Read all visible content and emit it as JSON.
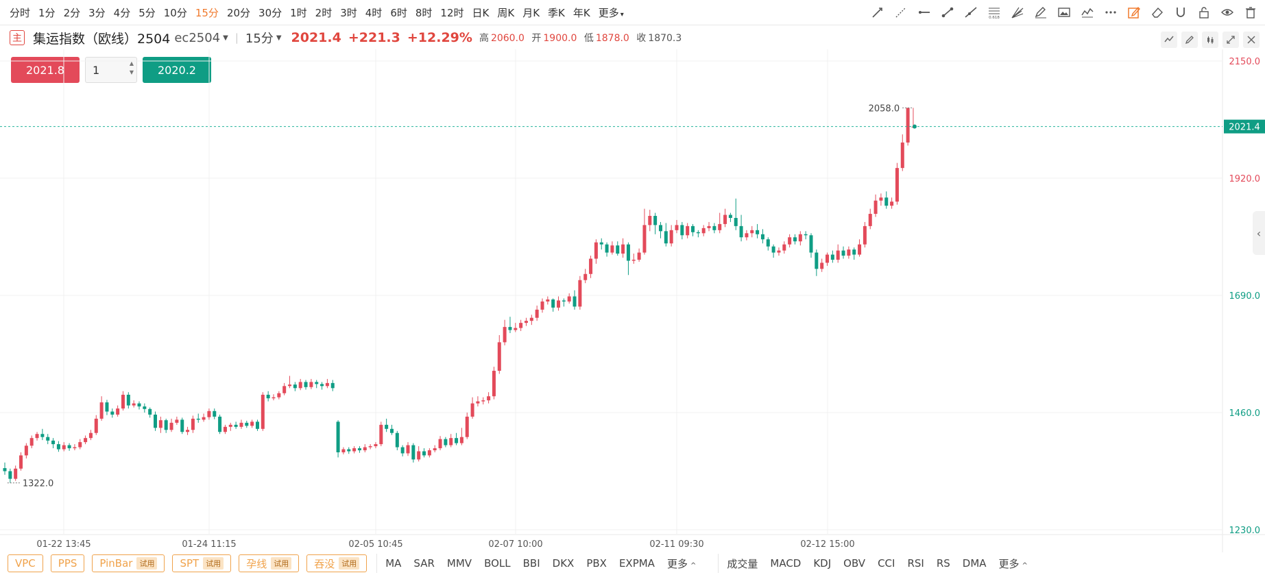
{
  "periods": {
    "items": [
      "分时",
      "1分",
      "2分",
      "3分",
      "4分",
      "5分",
      "10分",
      "15分",
      "20分",
      "30分",
      "1时",
      "2时",
      "3时",
      "4时",
      "6时",
      "8时",
      "12时",
      "日K",
      "周K",
      "月K",
      "季K",
      "年K",
      "更多"
    ],
    "active": "15分"
  },
  "drawing_tools": [
    "trend-line-icon",
    "ray-icon",
    "horizontal-line-icon",
    "segment-icon",
    "extended-line-icon",
    "fibonacci-icon",
    "gann-fan-icon",
    "brush-icon",
    "image-icon",
    "wave-icon",
    "more-icon",
    "edit-mode-icon",
    "eraser-icon",
    "magnet-icon",
    "lock-icon",
    "eye-icon",
    "trash-icon"
  ],
  "fib_label": "0.618",
  "instrument": {
    "badge": "主",
    "name": "集运指数（欧线）2504",
    "code": "ec2504",
    "interval": "15分",
    "last": "2021.4",
    "change": "+221.3",
    "change_pct": "+12.29%",
    "high_label": "高",
    "high": "2060.0",
    "open_label": "开",
    "open": "1900.0",
    "low_label": "低",
    "low": "1878.0",
    "close_label": "收",
    "close": "1870.3"
  },
  "trade": {
    "buy_price": "2021.8",
    "quantity": "1",
    "sell_price": "2020.2"
  },
  "colors": {
    "up": "#e34a5a",
    "down": "#0f9d84",
    "active_period": "#f07a2d",
    "tag": "#f0a24a"
  },
  "bottom": {
    "tags": [
      {
        "label": "VPC",
        "trial": ""
      },
      {
        "label": "PPS",
        "trial": ""
      },
      {
        "label": "PinBar",
        "trial": "试用"
      },
      {
        "label": "SPT",
        "trial": "试用"
      },
      {
        "label": "孕线",
        "trial": "试用"
      },
      {
        "label": "吞没",
        "trial": "试用"
      }
    ],
    "main_indicators": [
      "MA",
      "SAR",
      "MMV",
      "BOLL",
      "BBI",
      "DKX",
      "PBX",
      "EXPMA"
    ],
    "main_more": "更多",
    "sub_indicators": [
      "成交量",
      "MACD",
      "KDJ",
      "OBV",
      "CCI",
      "RSI",
      "RS",
      "DMA"
    ],
    "sub_more": "更多"
  },
  "chart_data": {
    "type": "candlestick",
    "y_ticks": [
      "2150.0",
      "1920.0",
      "1690.0",
      "1460.0",
      "1230.0"
    ],
    "ylim": [
      1230,
      2150
    ],
    "x_ticks": [
      "01-22 13:45",
      "01-24 11:15",
      "02-05 10:45",
      "02-07 10:00",
      "02-11 09:30",
      "02-12 15:00"
    ],
    "last_price_label": "2021.4",
    "max_label": "2058.0",
    "min_label": "1322.0",
    "candles": [
      [
        1351,
        1345,
        1362,
        1338
      ],
      [
        1345,
        1330,
        1350,
        1322
      ],
      [
        1330,
        1350,
        1356,
        1326
      ],
      [
        1350,
        1376,
        1382,
        1346
      ],
      [
        1376,
        1395,
        1400,
        1370
      ],
      [
        1395,
        1410,
        1415,
        1390
      ],
      [
        1410,
        1418,
        1422,
        1405
      ],
      [
        1418,
        1412,
        1428,
        1406
      ],
      [
        1412,
        1405,
        1418,
        1398
      ],
      [
        1405,
        1398,
        1410,
        1390
      ],
      [
        1398,
        1388,
        1404,
        1383
      ],
      [
        1388,
        1396,
        1402,
        1384
      ],
      [
        1396,
        1390,
        1400,
        1385
      ],
      [
        1390,
        1392,
        1398,
        1386
      ],
      [
        1392,
        1402,
        1408,
        1388
      ],
      [
        1402,
        1410,
        1415,
        1398
      ],
      [
        1410,
        1420,
        1426,
        1406
      ],
      [
        1420,
        1448,
        1455,
        1416
      ],
      [
        1448,
        1480,
        1492,
        1444
      ],
      [
        1480,
        1462,
        1485,
        1455
      ],
      [
        1462,
        1456,
        1468,
        1450
      ],
      [
        1456,
        1468,
        1474,
        1452
      ],
      [
        1468,
        1495,
        1502,
        1464
      ],
      [
        1495,
        1474,
        1500,
        1468
      ],
      [
        1474,
        1478,
        1484,
        1470
      ],
      [
        1478,
        1472,
        1482,
        1466
      ],
      [
        1472,
        1467,
        1478,
        1460
      ],
      [
        1467,
        1456,
        1470,
        1450
      ],
      [
        1456,
        1430,
        1462,
        1424
      ],
      [
        1430,
        1445,
        1452,
        1420
      ],
      [
        1445,
        1426,
        1448,
        1420
      ],
      [
        1426,
        1440,
        1448,
        1422
      ],
      [
        1440,
        1446,
        1452,
        1436
      ],
      [
        1446,
        1422,
        1450,
        1418
      ],
      [
        1422,
        1426,
        1432,
        1416
      ],
      [
        1426,
        1448,
        1454,
        1420
      ],
      [
        1448,
        1446,
        1458,
        1440
      ],
      [
        1446,
        1451,
        1458,
        1442
      ],
      [
        1451,
        1463,
        1468,
        1446
      ],
      [
        1463,
        1452,
        1468,
        1447
      ],
      [
        1452,
        1422,
        1456,
        1418
      ],
      [
        1422,
        1432,
        1436,
        1418
      ],
      [
        1432,
        1436,
        1440,
        1424
      ],
      [
        1436,
        1432,
        1442,
        1428
      ],
      [
        1432,
        1440,
        1446,
        1428
      ],
      [
        1440,
        1434,
        1444,
        1430
      ],
      [
        1434,
        1442,
        1446,
        1430
      ],
      [
        1442,
        1428,
        1446,
        1424
      ],
      [
        1428,
        1495,
        1500,
        1424
      ],
      [
        1495,
        1488,
        1502,
        1482
      ],
      [
        1488,
        1490,
        1496,
        1484
      ],
      [
        1490,
        1498,
        1502,
        1486
      ],
      [
        1498,
        1512,
        1518,
        1494
      ],
      [
        1512,
        1515,
        1532,
        1508
      ],
      [
        1515,
        1508,
        1520,
        1502
      ],
      [
        1508,
        1520,
        1526,
        1504
      ],
      [
        1520,
        1510,
        1524,
        1505
      ],
      [
        1510,
        1520,
        1526,
        1506
      ],
      [
        1520,
        1516,
        1524,
        1508
      ],
      [
        1516,
        1512,
        1520,
        1505
      ],
      [
        1512,
        1518,
        1526,
        1508
      ],
      [
        1518,
        1508,
        1524,
        1502
      ],
      [
        1442,
        1382,
        1445,
        1372
      ],
      [
        1382,
        1388,
        1392,
        1378
      ],
      [
        1388,
        1384,
        1392,
        1379
      ],
      [
        1384,
        1390,
        1394,
        1380
      ],
      [
        1390,
        1386,
        1394,
        1381
      ],
      [
        1386,
        1392,
        1398,
        1382
      ],
      [
        1392,
        1394,
        1398,
        1388
      ],
      [
        1394,
        1398,
        1402,
        1390
      ],
      [
        1398,
        1436,
        1442,
        1394
      ],
      [
        1436,
        1428,
        1448,
        1422
      ],
      [
        1428,
        1420,
        1436,
        1416
      ],
      [
        1420,
        1392,
        1424,
        1386
      ],
      [
        1392,
        1380,
        1396,
        1374
      ],
      [
        1380,
        1396,
        1402,
        1375
      ],
      [
        1396,
        1368,
        1400,
        1362
      ],
      [
        1368,
        1384,
        1394,
        1364
      ],
      [
        1384,
        1376,
        1390,
        1372
      ],
      [
        1376,
        1386,
        1390,
        1372
      ],
      [
        1386,
        1390,
        1396,
        1382
      ],
      [
        1390,
        1408,
        1414,
        1386
      ],
      [
        1408,
        1396,
        1412,
        1392
      ],
      [
        1396,
        1410,
        1418,
        1392
      ],
      [
        1410,
        1400,
        1420,
        1396
      ],
      [
        1400,
        1412,
        1430,
        1396
      ],
      [
        1412,
        1452,
        1460,
        1408
      ],
      [
        1452,
        1478,
        1490,
        1448
      ],
      [
        1478,
        1482,
        1492,
        1472
      ],
      [
        1482,
        1484,
        1490,
        1476
      ],
      [
        1484,
        1492,
        1500,
        1478
      ],
      [
        1492,
        1542,
        1550,
        1486
      ],
      [
        1542,
        1598,
        1612,
        1536
      ],
      [
        1598,
        1628,
        1642,
        1592
      ],
      [
        1628,
        1622,
        1648,
        1616
      ],
      [
        1622,
        1626,
        1636,
        1618
      ],
      [
        1626,
        1636,
        1642,
        1620
      ],
      [
        1636,
        1640,
        1646,
        1630
      ],
      [
        1640,
        1646,
        1652,
        1632
      ],
      [
        1646,
        1662,
        1670,
        1640
      ],
      [
        1662,
        1678,
        1684,
        1656
      ],
      [
        1678,
        1682,
        1688,
        1672
      ],
      [
        1682,
        1666,
        1684,
        1658
      ],
      [
        1666,
        1680,
        1688,
        1660
      ],
      [
        1680,
        1678,
        1684,
        1668
      ],
      [
        1678,
        1688,
        1694,
        1674
      ],
      [
        1688,
        1668,
        1700,
        1662
      ],
      [
        1668,
        1720,
        1728,
        1662
      ],
      [
        1720,
        1732,
        1742,
        1714
      ],
      [
        1732,
        1762,
        1768,
        1724
      ],
      [
        1762,
        1794,
        1800,
        1752
      ],
      [
        1794,
        1790,
        1802,
        1780
      ],
      [
        1790,
        1774,
        1794,
        1766
      ],
      [
        1774,
        1788,
        1796,
        1770
      ],
      [
        1788,
        1772,
        1796,
        1768
      ],
      [
        1772,
        1790,
        1802,
        1764
      ],
      [
        1790,
        1758,
        1794,
        1730
      ],
      [
        1758,
        1760,
        1772,
        1752
      ],
      [
        1760,
        1774,
        1782,
        1756
      ],
      [
        1774,
        1828,
        1860,
        1770
      ],
      [
        1828,
        1846,
        1858,
        1816
      ],
      [
        1846,
        1828,
        1852,
        1810
      ],
      [
        1828,
        1816,
        1834,
        1802
      ],
      [
        1816,
        1792,
        1832,
        1786
      ],
      [
        1792,
        1818,
        1828,
        1786
      ],
      [
        1818,
        1828,
        1838,
        1812
      ],
      [
        1828,
        1808,
        1834,
        1800
      ],
      [
        1808,
        1826,
        1832,
        1802
      ],
      [
        1826,
        1814,
        1830,
        1806
      ],
      [
        1814,
        1812,
        1818,
        1804
      ],
      [
        1812,
        1822,
        1828,
        1806
      ],
      [
        1822,
        1826,
        1834,
        1816
      ],
      [
        1826,
        1818,
        1832,
        1812
      ],
      [
        1818,
        1830,
        1852,
        1812
      ],
      [
        1830,
        1848,
        1860,
        1824
      ],
      [
        1848,
        1842,
        1852,
        1834
      ],
      [
        1842,
        1826,
        1880,
        1818
      ],
      [
        1826,
        1804,
        1848,
        1796
      ],
      [
        1804,
        1812,
        1818,
        1798
      ],
      [
        1812,
        1818,
        1826,
        1804
      ],
      [
        1818,
        1810,
        1830,
        1802
      ],
      [
        1810,
        1800,
        1820,
        1792
      ],
      [
        1800,
        1786,
        1804,
        1778
      ],
      [
        1786,
        1774,
        1790,
        1764
      ],
      [
        1774,
        1778,
        1784,
        1768
      ],
      [
        1778,
        1790,
        1796,
        1772
      ],
      [
        1790,
        1804,
        1810,
        1784
      ],
      [
        1804,
        1796,
        1810,
        1790
      ],
      [
        1796,
        1810,
        1816,
        1788
      ],
      [
        1810,
        1808,
        1816,
        1800
      ],
      [
        1808,
        1774,
        1812,
        1764
      ],
      [
        1774,
        1742,
        1780,
        1728
      ],
      [
        1742,
        1754,
        1762,
        1736
      ],
      [
        1754,
        1770,
        1774,
        1748
      ],
      [
        1770,
        1760,
        1778,
        1754
      ],
      [
        1760,
        1778,
        1790,
        1754
      ],
      [
        1778,
        1768,
        1786,
        1762
      ],
      [
        1768,
        1780,
        1786,
        1762
      ],
      [
        1780,
        1770,
        1784,
        1760
      ],
      [
        1770,
        1790,
        1800,
        1766
      ],
      [
        1790,
        1826,
        1834,
        1784
      ],
      [
        1826,
        1850,
        1860,
        1820
      ],
      [
        1850,
        1876,
        1888,
        1844
      ],
      [
        1876,
        1882,
        1890,
        1866
      ],
      [
        1882,
        1866,
        1894,
        1860
      ],
      [
        1866,
        1874,
        1882,
        1860
      ],
      [
        1874,
        1940,
        1950,
        1868
      ],
      [
        1940,
        1990,
        2006,
        1934
      ],
      [
        1990,
        2058,
        2058,
        1984
      ],
      [
        2021,
        2021,
        2058,
        2018
      ]
    ]
  }
}
